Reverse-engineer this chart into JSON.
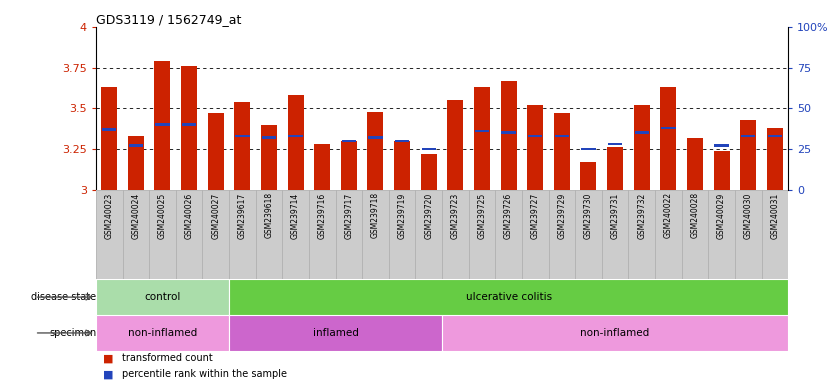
{
  "title": "GDS3119 / 1562749_at",
  "samples": [
    "GSM240023",
    "GSM240024",
    "GSM240025",
    "GSM240026",
    "GSM240027",
    "GSM239617",
    "GSM239618",
    "GSM239714",
    "GSM239716",
    "GSM239717",
    "GSM239718",
    "GSM239719",
    "GSM239720",
    "GSM239723",
    "GSM239725",
    "GSM239726",
    "GSM239727",
    "GSM239729",
    "GSM239730",
    "GSM239731",
    "GSM239732",
    "GSM240022",
    "GSM240028",
    "GSM240029",
    "GSM240030",
    "GSM240031"
  ],
  "red_values": [
    3.63,
    3.33,
    3.79,
    3.76,
    3.47,
    3.54,
    3.4,
    3.58,
    3.28,
    3.3,
    3.48,
    3.3,
    3.22,
    3.55,
    3.63,
    3.67,
    3.52,
    3.47,
    3.17,
    3.26,
    3.52,
    3.63,
    3.32,
    3.24,
    3.43,
    3.38
  ],
  "blue_values": [
    3.37,
    3.27,
    3.4,
    3.4,
    null,
    3.33,
    3.32,
    3.33,
    null,
    3.3,
    3.32,
    3.3,
    3.25,
    null,
    3.36,
    3.35,
    3.33,
    3.33,
    3.25,
    3.28,
    3.35,
    3.38,
    null,
    3.27,
    3.33,
    3.33
  ],
  "y_min": 3.0,
  "y_max": 4.0,
  "bar_color": "#cc2200",
  "blue_color": "#2244bb",
  "disease_state_groups": [
    {
      "label": "control",
      "start": 0,
      "end": 5,
      "color": "#aaddaa"
    },
    {
      "label": "ulcerative colitis",
      "start": 5,
      "end": 26,
      "color": "#66cc44"
    }
  ],
  "specimen_groups": [
    {
      "label": "non-inflamed",
      "start": 0,
      "end": 5,
      "color": "#ee99dd"
    },
    {
      "label": "inflamed",
      "start": 5,
      "end": 13,
      "color": "#cc66cc"
    },
    {
      "label": "non-inflamed",
      "start": 13,
      "end": 26,
      "color": "#ee99dd"
    }
  ],
  "tick_bg": "#cccccc",
  "tick_border": "#aaaaaa"
}
